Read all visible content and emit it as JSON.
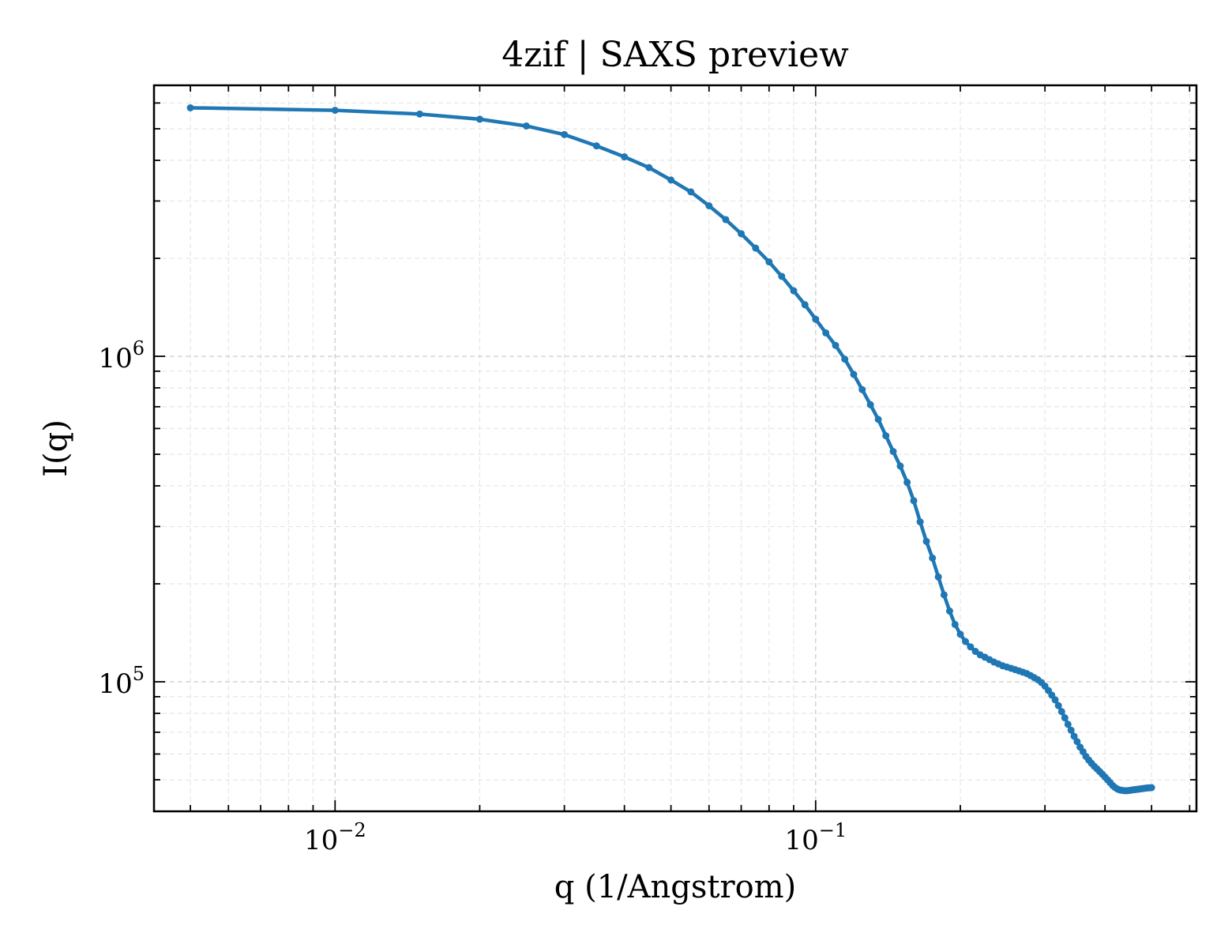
{
  "chart_data": {
    "type": "line",
    "title": "4zif | SAXS preview",
    "xlabel": "q (1/Angstrom)",
    "ylabel": "I(q)",
    "xscale": "log",
    "yscale": "log",
    "xlim": [
      0.0042,
      0.62
    ],
    "ylim": [
      40000,
      6800000
    ],
    "grid": true,
    "color": "#1f77b4",
    "x_ticks": [
      {
        "base": "10",
        "exp": "−2",
        "value": 0.01
      },
      {
        "base": "10",
        "exp": "−1",
        "value": 0.1
      }
    ],
    "y_ticks": [
      {
        "base": "10",
        "exp": "5",
        "value": 100000
      },
      {
        "base": "10",
        "exp": "6",
        "value": 1000000
      }
    ],
    "series": [
      {
        "x": [
          0.005,
          0.01,
          0.015,
          0.02,
          0.025,
          0.03,
          0.035,
          0.04,
          0.045,
          0.05,
          0.055,
          0.06,
          0.065,
          0.07,
          0.075,
          0.08,
          0.085,
          0.09,
          0.095,
          0.1,
          0.105,
          0.11,
          0.115,
          0.12,
          0.125,
          0.13,
          0.135,
          0.14,
          0.145,
          0.15,
          0.155,
          0.16,
          0.165,
          0.17,
          0.175,
          0.18,
          0.185,
          0.19,
          0.195,
          0.2,
          0.205,
          0.21,
          0.215,
          0.22,
          0.225,
          0.23,
          0.235,
          0.24,
          0.245,
          0.25,
          0.255,
          0.26,
          0.265,
          0.27,
          0.275,
          0.28,
          0.285,
          0.29,
          0.295,
          0.3,
          0.305,
          0.31,
          0.315,
          0.32,
          0.325,
          0.33,
          0.335,
          0.34,
          0.345,
          0.35,
          0.355,
          0.36,
          0.365,
          0.37,
          0.375,
          0.38,
          0.385,
          0.39,
          0.395,
          0.4,
          0.405,
          0.41,
          0.415,
          0.42,
          0.425,
          0.43,
          0.435,
          0.44,
          0.445,
          0.45,
          0.455,
          0.46,
          0.465,
          0.47,
          0.475,
          0.48,
          0.485,
          0.49,
          0.495,
          0.5
        ],
        "y": [
          5800000,
          5700000,
          5550000,
          5350000,
          5100000,
          4800000,
          4430000,
          4100000,
          3800000,
          3480000,
          3200000,
          2900000,
          2630000,
          2380000,
          2150000,
          1950000,
          1760000,
          1590000,
          1440000,
          1300000,
          1180000,
          1080000,
          980000,
          880000,
          790000,
          710000,
          640000,
          570000,
          510000,
          460000,
          410000,
          360000,
          310000,
          270000,
          240000,
          210000,
          185000,
          165000,
          150000,
          140000,
          133000,
          128000,
          124000,
          121000,
          119000,
          117000,
          115000,
          113500,
          112000,
          111000,
          110000,
          109000,
          108000,
          107000,
          106000,
          104500,
          103000,
          101500,
          99500,
          97000,
          94000,
          91000,
          88000,
          84500,
          81000,
          77500,
          74000,
          71000,
          68000,
          65500,
          63000,
          61000,
          59000,
          57500,
          56200,
          55000,
          54000,
          53000,
          52000,
          51000,
          50000,
          49000,
          48000,
          47300,
          46800,
          46500,
          46400,
          46300,
          46300,
          46400,
          46500,
          46600,
          46700,
          46800,
          46900,
          47000,
          47100,
          47200,
          47250,
          47300
        ]
      }
    ]
  }
}
